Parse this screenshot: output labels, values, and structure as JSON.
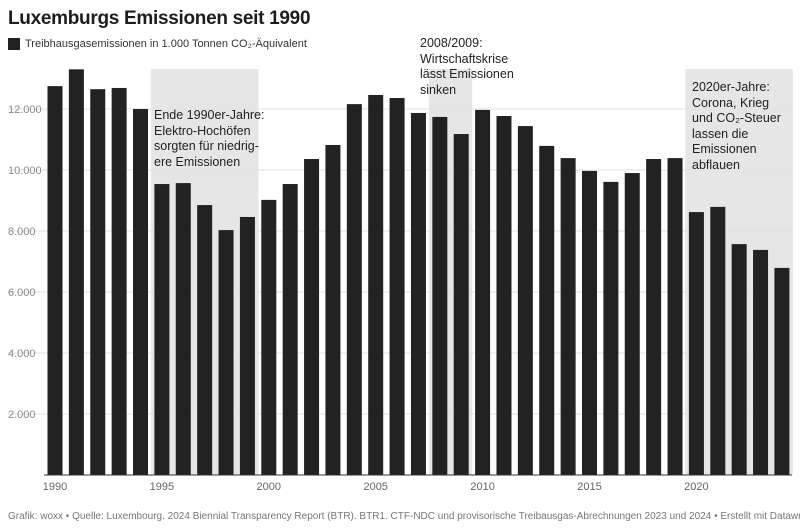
{
  "chart_data": {
    "type": "bar",
    "title": "Luxemburgs Emissionen seit 1990",
    "legend": [
      {
        "name": "Treibhausgasemissionen in 1.000 Tonnen CO₂-Äquivalent",
        "color": "#222222"
      }
    ],
    "legend_placement": "top-left",
    "categories": [
      1990,
      1991,
      1992,
      1993,
      1994,
      1995,
      1996,
      1997,
      1998,
      1999,
      2000,
      2001,
      2002,
      2003,
      2004,
      2005,
      2006,
      2007,
      2008,
      2009,
      2010,
      2011,
      2012,
      2013,
      2014,
      2015,
      2016,
      2017,
      2018,
      2019,
      2020,
      2021,
      2022,
      2023,
      2024
    ],
    "series": [
      {
        "name": "Treibhausgasemissionen in 1.000 Tonnen CO₂-Äquivalent",
        "values": [
          12750,
          13300,
          12650,
          12690,
          12000,
          9540,
          9570,
          8850,
          8030,
          8460,
          9020,
          9540,
          10360,
          10820,
          12160,
          12460,
          12360,
          11870,
          11740,
          11180,
          11970,
          11770,
          11440,
          10790,
          10390,
          9970,
          9610,
          9900,
          10360,
          10390,
          8620,
          8790,
          7570,
          7380,
          6790
        ]
      }
    ],
    "ylim": [
      0,
      14000
    ],
    "yticks": [
      2000,
      4000,
      6000,
      8000,
      10000,
      12000
    ],
    "ytick_labels": [
      "2.000",
      "4.000",
      "6.000",
      "8.000",
      "10.000",
      "12.000"
    ],
    "xtick_labels": [
      "1990",
      "1995",
      "2000",
      "2005",
      "2010",
      "2015",
      "2020"
    ],
    "grid": true,
    "bar_color": "#222222",
    "highlight_color": "#e6e6e6",
    "annotations": [
      {
        "range": [
          1995,
          1999
        ],
        "text": "Ende 1990er-Jahre:\nElektro-Hochöfen\nsorgten für niedrig-\nere Emissionen"
      },
      {
        "range": [
          2008,
          2009
        ],
        "text": "2008/2009:\nWirtschaftskrise\nlässt Emissionen\nsinken"
      },
      {
        "range": [
          2020,
          2024
        ],
        "text": "2020er-Jahre:\nCorona, Krieg\nund CO₂-Steuer\nlassen die\nEmissionen\nabflauen"
      }
    ]
  },
  "footer": "Grafik: woxx • Quelle: Luxembourg. 2024 Biennial Transparency Report (BTR). BTR1. CTF-NDC und provisorische Treibausgas-Abrechnungen 2023 und 2024 • Erstellt mit Datawrapper"
}
